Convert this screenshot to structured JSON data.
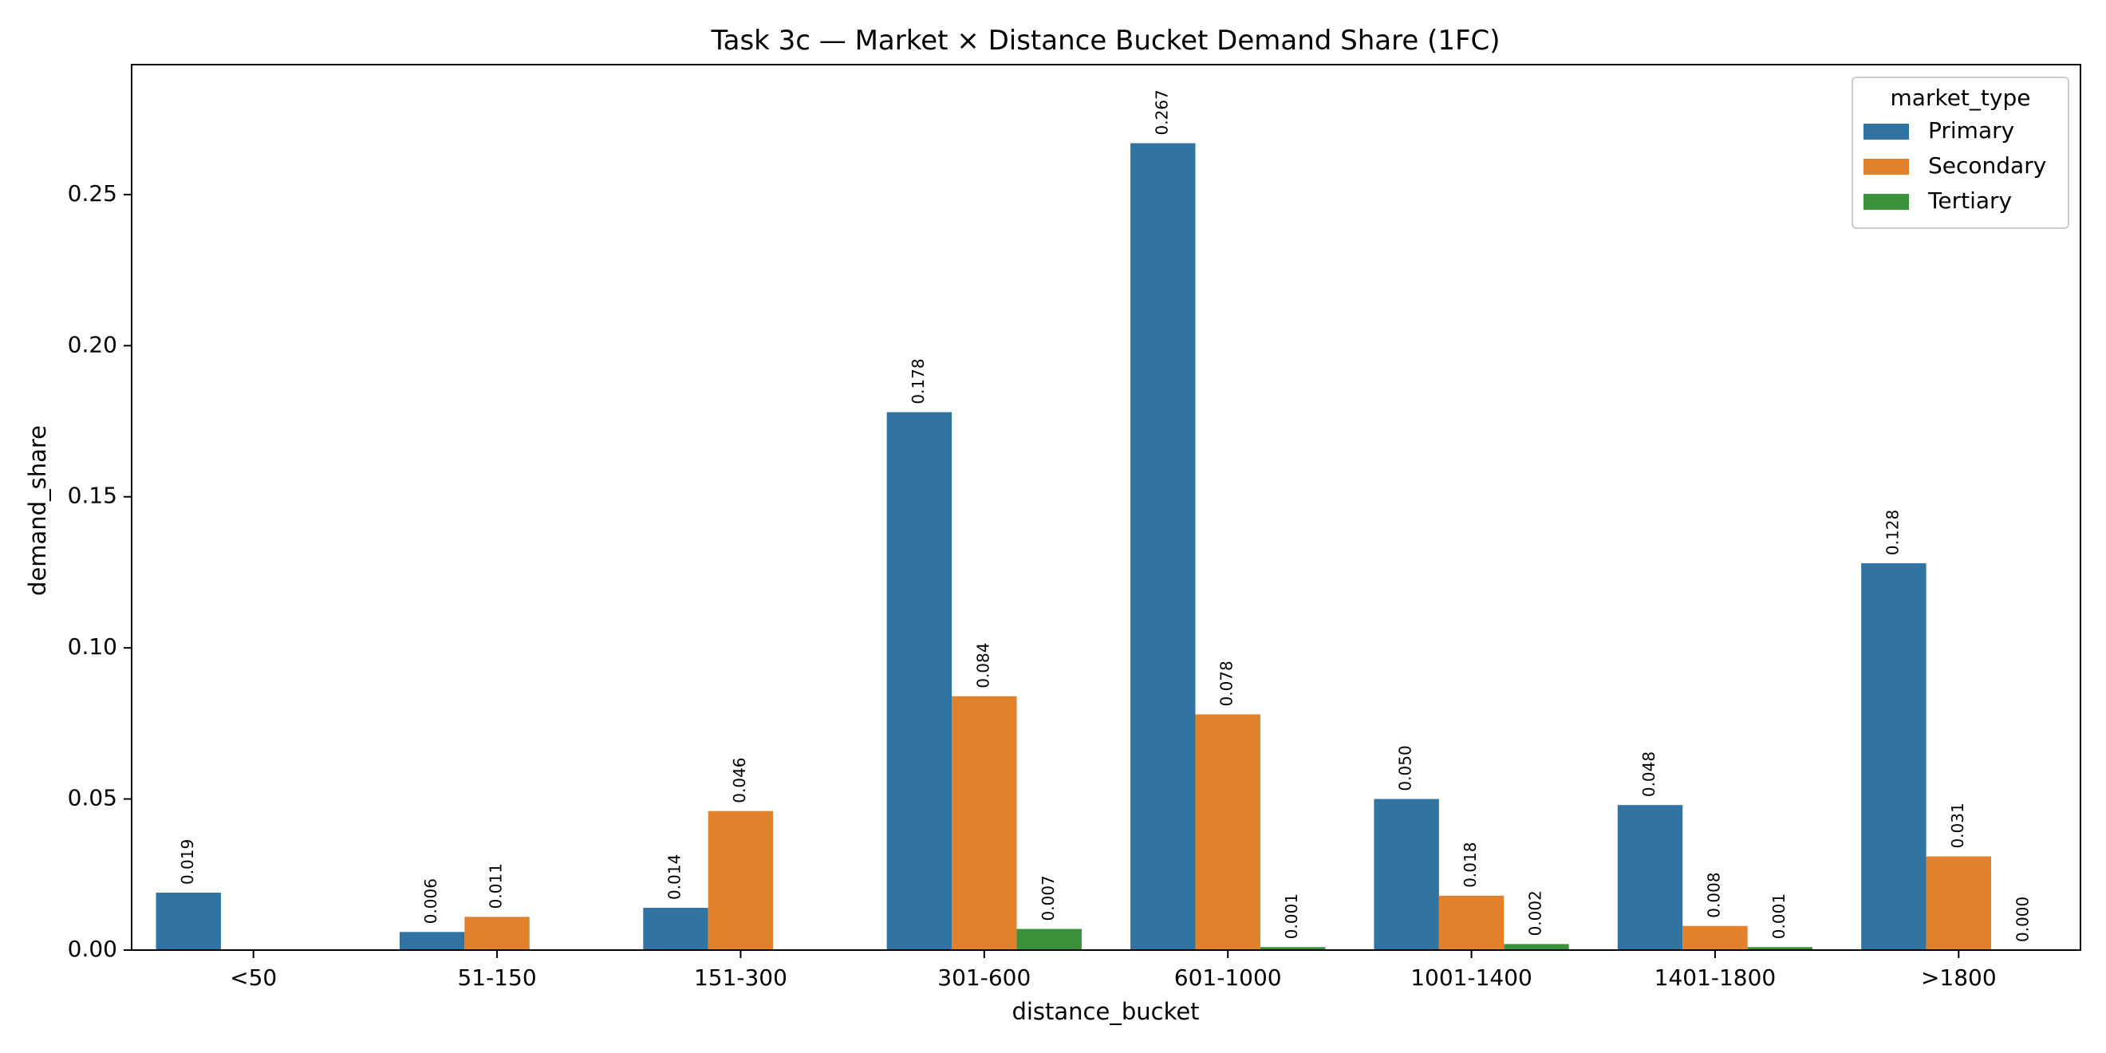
{
  "chart_data": {
    "type": "bar",
    "title": "Task 3c — Market × Distance Bucket Demand Share (1FC)",
    "xlabel": "distance_bucket",
    "ylabel": "demand_share",
    "ylim": [
      0,
      0.293
    ],
    "yticks": [
      "0.00",
      "0.05",
      "0.10",
      "0.15",
      "0.20",
      "0.25"
    ],
    "ytick_values": [
      0,
      0.05,
      0.1,
      0.15,
      0.2,
      0.25
    ],
    "grid": false,
    "legend": {
      "title": "market_type",
      "placement": "top-right"
    },
    "categories": [
      "<50",
      "51-150",
      "151-300",
      "301-600",
      "601-1000",
      "1001-1400",
      "1401-1800",
      ">1800"
    ],
    "series": [
      {
        "name": "Primary",
        "color": "#3274a1",
        "values": [
          0.019,
          0.006,
          0.014,
          0.178,
          0.267,
          0.05,
          0.048,
          0.128
        ],
        "labels": [
          "0.019",
          "0.006",
          "0.014",
          "0.178",
          "0.267",
          "0.050",
          "0.048",
          "0.128"
        ]
      },
      {
        "name": "Secondary",
        "color": "#e1812c",
        "values": [
          null,
          0.011,
          0.046,
          0.084,
          0.078,
          0.018,
          0.008,
          0.031
        ],
        "labels": [
          null,
          "0.011",
          "0.046",
          "0.084",
          "0.078",
          "0.018",
          "0.008",
          "0.031"
        ]
      },
      {
        "name": "Tertiary",
        "color": "#3a923a",
        "values": [
          null,
          null,
          null,
          0.007,
          0.001,
          0.002,
          0.001,
          0.0
        ],
        "labels": [
          null,
          null,
          null,
          "0.007",
          "0.001",
          "0.002",
          "0.001",
          "0.000"
        ]
      }
    ]
  }
}
